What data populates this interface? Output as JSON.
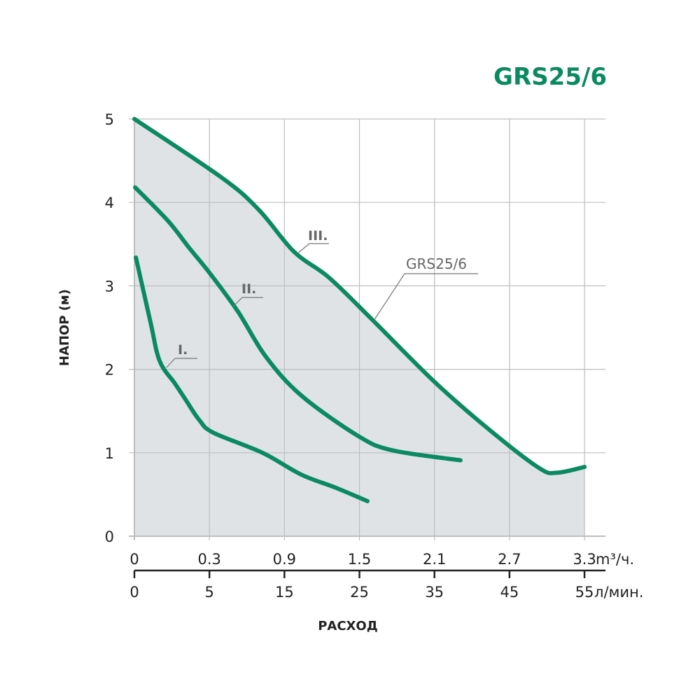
{
  "chart_data": {
    "type": "line",
    "title": "GRS25/6",
    "xlabel": "РАСХОД",
    "ylabel": "НАПОР (м)",
    "x_unit_primary": "m³/ч.",
    "x_unit_secondary": "л/мин.",
    "x_ticks_primary": [
      "0",
      "0.3",
      "0.9",
      "1.5",
      "2.1",
      "2.7",
      "3.3"
    ],
    "x_ticks_secondary": [
      "0",
      "5",
      "15",
      "25",
      "35",
      "45",
      "55"
    ],
    "y_ticks": [
      "0",
      "1",
      "2",
      "3",
      "4",
      "5"
    ],
    "ylim": [
      0,
      5
    ],
    "xlim": [
      0,
      3.3
    ],
    "grid": true,
    "area_fill_under": "III.",
    "series": [
      {
        "name": "III.",
        "x": [
          0,
          0.405,
          0.696,
          0.976,
          1.256,
          1.592,
          2.1,
          2.543,
          2.934,
          3.075,
          3.3
        ],
        "y": [
          5.0,
          4.29,
          3.91,
          3.41,
          3.1,
          2.61,
          1.85,
          1.27,
          0.82,
          0.76,
          0.83
        ]
      },
      {
        "name": "II.",
        "x": [
          0.003,
          0.134,
          0.218,
          0.304,
          0.529,
          0.752,
          1.032,
          1.48,
          1.76,
          2.308
        ],
        "y": [
          4.18,
          3.78,
          3.46,
          3.15,
          2.69,
          2.15,
          1.69,
          1.21,
          1.03,
          0.91
        ]
      },
      {
        "name": "I.",
        "x": [
          0.006,
          0.064,
          0.101,
          0.162,
          0.204,
          0.26,
          0.332,
          0.724,
          1.032,
          1.312,
          1.564
        ],
        "y": [
          3.34,
          2.57,
          2.1,
          1.83,
          1.64,
          1.39,
          1.24,
          1.0,
          0.74,
          0.58,
          0.42
        ]
      }
    ],
    "annotations": [
      "III.",
      "II.",
      "I.",
      "GRS25/6"
    ],
    "colors": {
      "line": "#0b8a61",
      "fill": "#dfe3e6",
      "grid": "#bdbdbd",
      "annotation": "#666666"
    }
  }
}
